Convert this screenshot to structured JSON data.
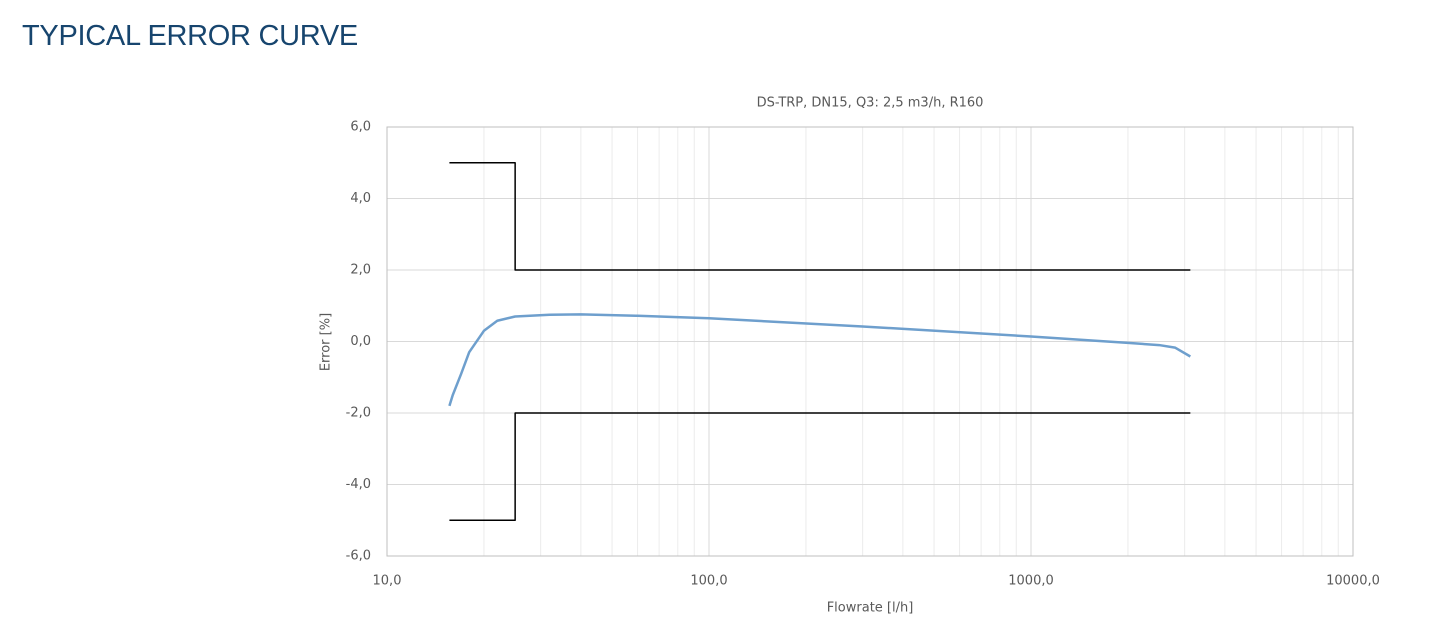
{
  "heading": "TYPICAL ERROR CURVE",
  "chart_data": {
    "type": "line",
    "title": "DS-TRP, DN15, Q3: 2,5 m3/h, R160",
    "x_label": "Flowrate [l/h]",
    "y_label": "Error [%]",
    "xscale": "log",
    "grid": true,
    "xlim": [
      10,
      10000
    ],
    "ylim": [
      -6,
      6
    ],
    "xticks": [
      {
        "value": 10,
        "label": "10,0"
      },
      {
        "value": 100,
        "label": "100,0"
      },
      {
        "value": 1000,
        "label": "1000,0"
      },
      {
        "value": 10000,
        "label": "10000,0"
      }
    ],
    "yticks": [
      {
        "value": -6,
        "label": "-6,0"
      },
      {
        "value": -4,
        "label": "-4,0"
      },
      {
        "value": -2,
        "label": "-2,0"
      },
      {
        "value": 0,
        "label": "0,0"
      },
      {
        "value": 2,
        "label": "2,0"
      },
      {
        "value": 4,
        "label": "4,0"
      },
      {
        "value": 6,
        "label": "6,0"
      }
    ],
    "series": [
      {
        "color": "#6e9fcd",
        "x": [
          15.625,
          16,
          17,
          18,
          20,
          22,
          25,
          32,
          40,
          60,
          100,
          300,
          1000,
          2000,
          2500,
          2800,
          3125
        ],
        "values": [
          -1.8,
          -1.5,
          -0.9,
          -0.3,
          0.3,
          0.58,
          0.7,
          0.75,
          0.76,
          0.72,
          0.65,
          0.42,
          0.14,
          -0.04,
          -0.1,
          -0.17,
          -0.42
        ]
      },
      {
        "color": "#000000",
        "x": [
          15.625,
          25,
          25,
          3125
        ],
        "values": [
          5,
          5,
          2,
          2
        ]
      },
      {
        "color": "#000000",
        "x": [
          15.625,
          25,
          25,
          3125
        ],
        "values": [
          -5,
          -5,
          -2,
          -2
        ]
      }
    ]
  }
}
